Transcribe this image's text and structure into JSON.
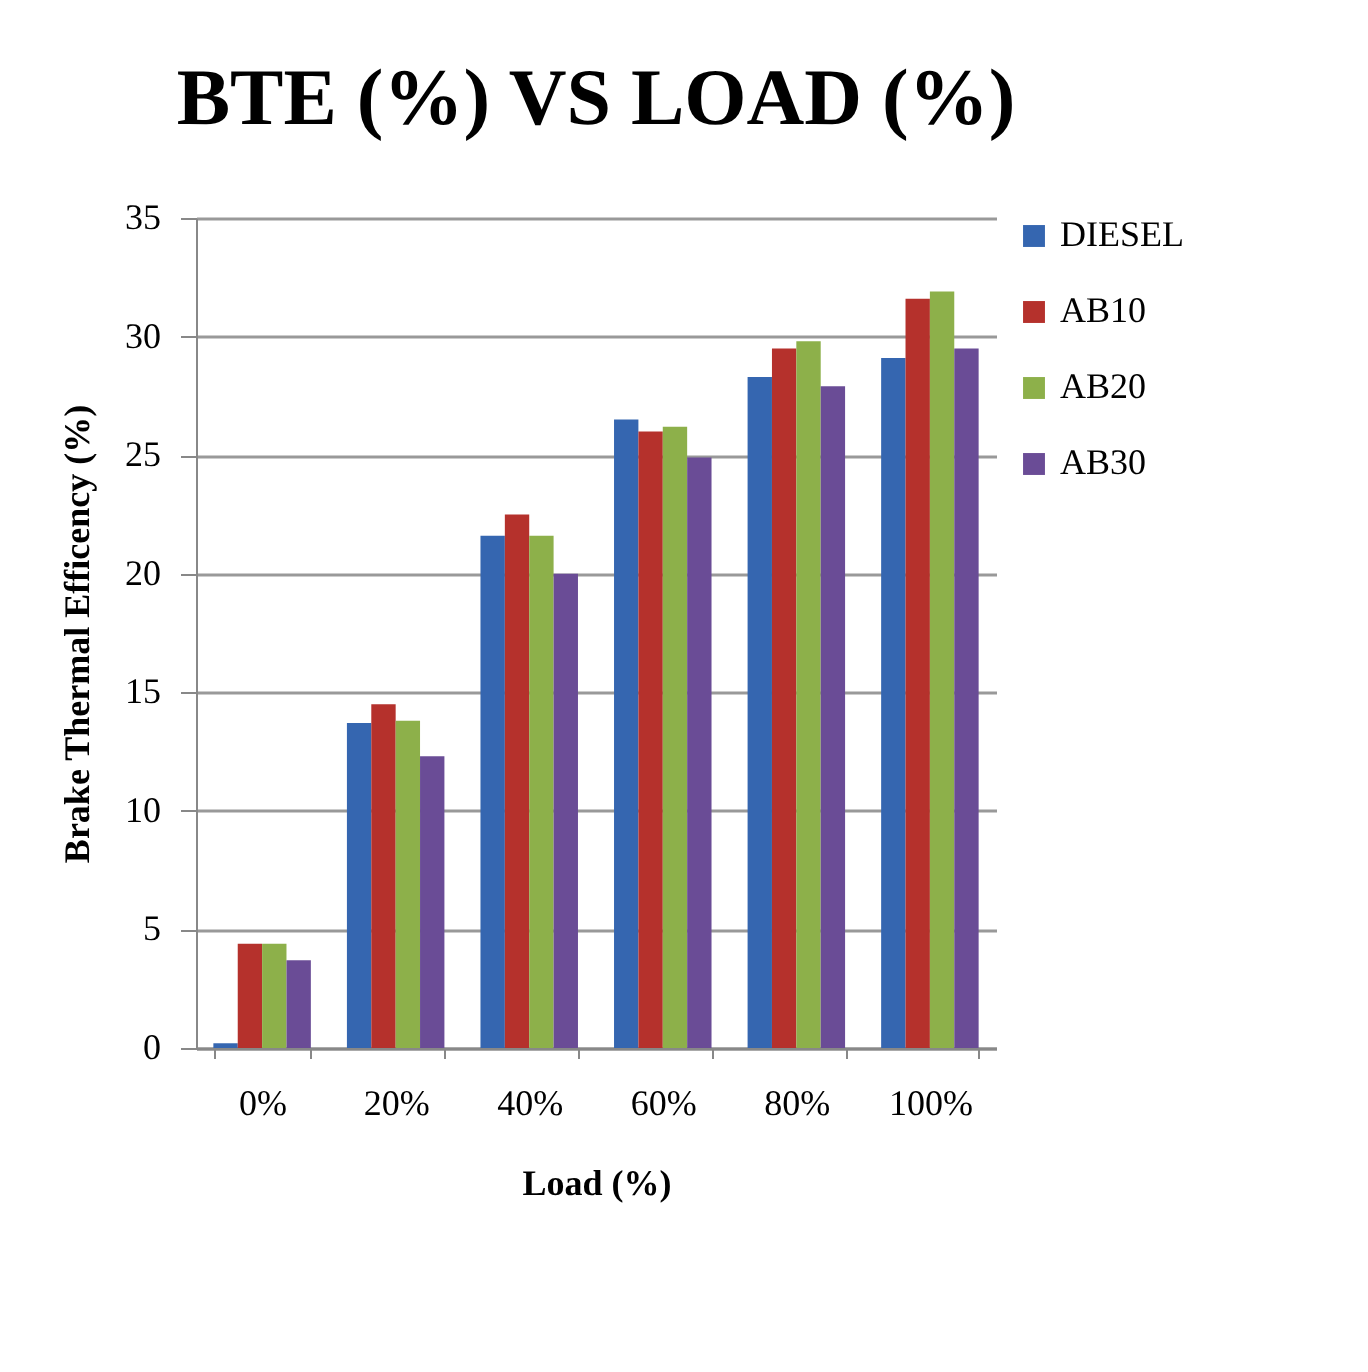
{
  "chart_data": {
    "type": "bar",
    "title": "BTE (%) VS LOAD (%)",
    "xlabel": "Load (%)",
    "ylabel": "Brake Thermal Efficency (%)",
    "categories": [
      "0%",
      "20%",
      "40%",
      "60%",
      "80%",
      "100%"
    ],
    "series": [
      {
        "name": "DIESEL",
        "color": "#3566b0",
        "values": [
          0.2,
          13.7,
          21.6,
          26.5,
          28.3,
          29.1
        ]
      },
      {
        "name": "AB10",
        "color": "#b5312c",
        "values": [
          4.4,
          14.5,
          22.5,
          26.0,
          29.5,
          31.6
        ]
      },
      {
        "name": "AB20",
        "color": "#8db04a",
        "values": [
          4.4,
          13.8,
          21.6,
          26.2,
          29.8,
          31.9
        ]
      },
      {
        "name": "AB30",
        "color": "#6a4c96",
        "values": [
          3.7,
          12.3,
          20.0,
          24.9,
          27.9,
          29.5
        ]
      }
    ],
    "ylim": [
      0,
      35
    ],
    "yticks": [
      0,
      5,
      10,
      15,
      20,
      25,
      30,
      35
    ],
    "grid": "y",
    "legend": "right"
  }
}
